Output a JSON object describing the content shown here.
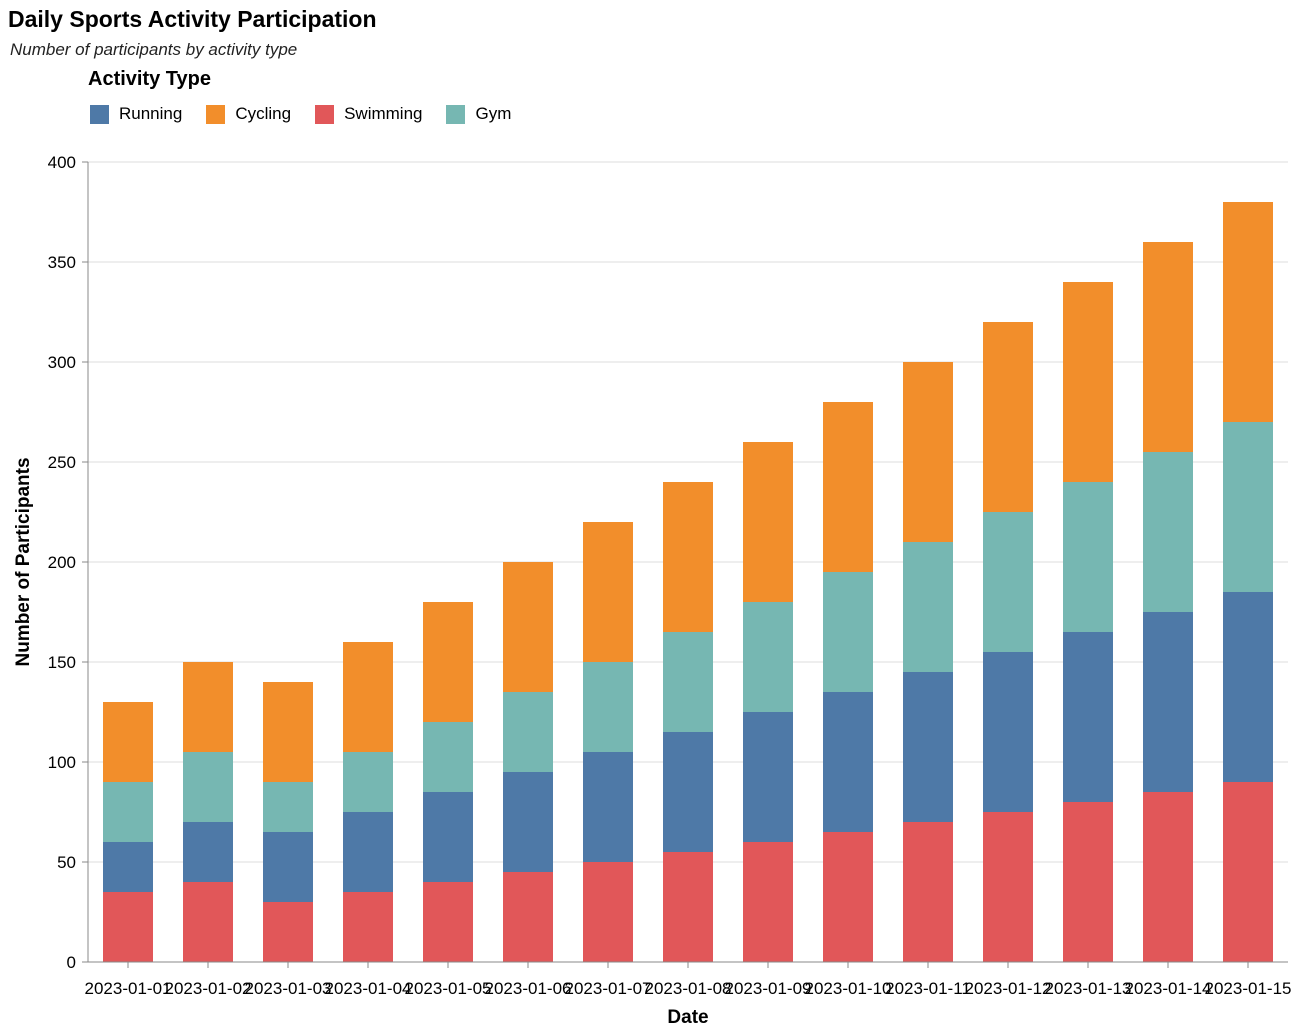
{
  "title": "Daily Sports Activity Participation",
  "subtitle": "Number of participants by activity type",
  "legend": {
    "title": "Activity Type",
    "items": [
      {
        "label": "Running",
        "color": "#4e79a7"
      },
      {
        "label": "Cycling",
        "color": "#f28e2b"
      },
      {
        "label": "Swimming",
        "color": "#e15759"
      },
      {
        "label": "Gym",
        "color": "#76b7b2"
      }
    ]
  },
  "chart_data": {
    "type": "bar",
    "stacked": true,
    "xlabel": "Date",
    "ylabel": "Number of Participants",
    "ylim": [
      0,
      400
    ],
    "yticks": [
      0,
      50,
      100,
      150,
      200,
      250,
      300,
      350,
      400
    ],
    "grid": true,
    "legend_position": "top-left",
    "categories": [
      "2023-01-01",
      "2023-01-02",
      "2023-01-03",
      "2023-01-04",
      "2023-01-05",
      "2023-01-06",
      "2023-01-07",
      "2023-01-08",
      "2023-01-09",
      "2023-01-10",
      "2023-01-11",
      "2023-01-12",
      "2023-01-13",
      "2023-01-14",
      "2023-01-15"
    ],
    "series": [
      {
        "name": "Swimming",
        "color": "#e15759",
        "values": [
          35,
          40,
          30,
          35,
          40,
          45,
          50,
          55,
          60,
          65,
          70,
          75,
          80,
          85,
          90
        ]
      },
      {
        "name": "Running",
        "color": "#4e79a7",
        "values": [
          25,
          30,
          35,
          40,
          45,
          50,
          55,
          60,
          65,
          70,
          75,
          80,
          85,
          90,
          95
        ]
      },
      {
        "name": "Gym",
        "color": "#76b7b2",
        "values": [
          30,
          35,
          25,
          30,
          35,
          40,
          45,
          50,
          55,
          60,
          65,
          70,
          75,
          80,
          85
        ]
      },
      {
        "name": "Cycling",
        "color": "#f28e2b",
        "values": [
          40,
          45,
          50,
          55,
          60,
          65,
          70,
          75,
          80,
          85,
          90,
          95,
          100,
          105,
          110
        ]
      }
    ]
  }
}
